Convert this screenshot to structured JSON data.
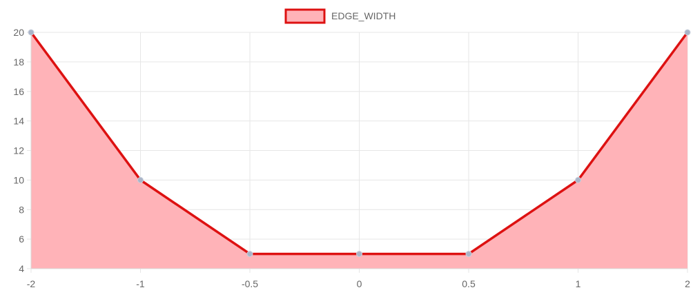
{
  "chart_data": {
    "type": "area",
    "title": "",
    "xlabel": "",
    "ylabel": "",
    "legend": {
      "position": "top",
      "label": "EDGE_WIDTH"
    },
    "grid": true,
    "x": [
      -2,
      -1,
      -0.5,
      0,
      0.5,
      1,
      2
    ],
    "x_tick_labels": [
      "-2",
      "-1",
      "-0.5",
      "0",
      "0.5",
      "1",
      "2"
    ],
    "y_ticks": [
      4,
      6,
      8,
      10,
      12,
      14,
      16,
      18,
      20
    ],
    "ylim": [
      4,
      20
    ],
    "series": [
      {
        "name": "EDGE_WIDTH",
        "values": [
          20,
          10,
          5,
          5,
          5,
          10,
          20
        ],
        "line_color": "#dd1111",
        "fill_color": "#ffb3b8",
        "point_color": "#a9b4c8"
      }
    ]
  }
}
